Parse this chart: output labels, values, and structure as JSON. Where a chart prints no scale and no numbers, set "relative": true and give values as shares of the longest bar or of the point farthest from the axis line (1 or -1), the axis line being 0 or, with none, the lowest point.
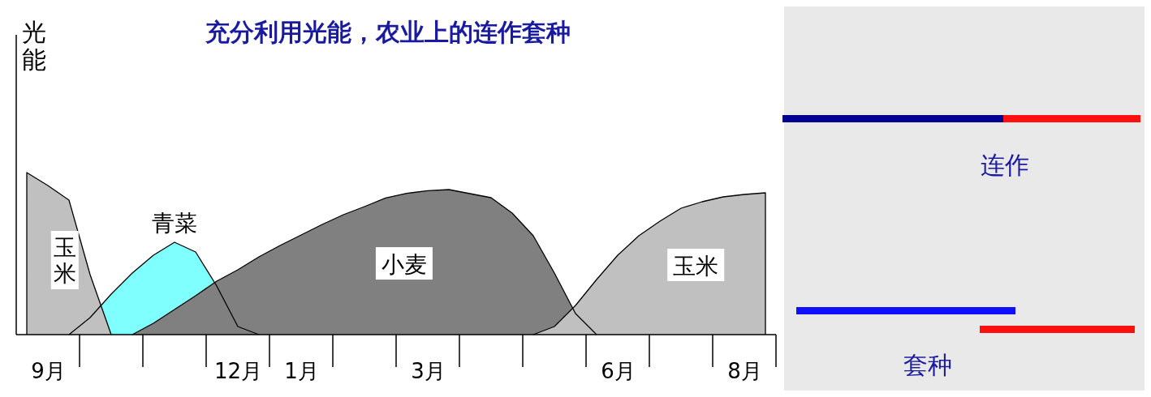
{
  "chart_data": [
    {
      "type": "area",
      "title": "充分利用光能，农业上的连作套种",
      "ylabel": "光能",
      "relative": true,
      "categories": [
        null,
        "9月",
        null,
        null,
        null,
        null,
        null,
        null,
        null,
        null,
        "12月",
        null,
        null,
        "1月",
        null,
        null,
        null,
        null,
        null,
        "3月",
        null,
        null,
        null,
        null,
        null,
        null,
        null,
        null,
        "6月",
        null,
        null,
        null,
        null,
        null,
        "8月",
        null
      ],
      "series": [
        {
          "name": "青菜",
          "color": "#80ffff",
          "values": [
            null,
            null,
            0,
            0.105,
            0.25,
            0.38,
            0.49,
            0.57,
            0.51,
            0.3,
            0.05,
            0,
            null,
            null,
            null,
            null,
            null,
            null,
            null,
            null,
            null,
            null,
            null,
            null,
            null,
            null,
            null,
            null,
            null,
            null,
            null,
            null,
            null,
            null,
            null,
            null
          ]
        },
        {
          "name": "小麦",
          "color": "#808080",
          "values": [
            null,
            null,
            null,
            null,
            null,
            0,
            0.07,
            0.155,
            0.24,
            0.33,
            0.4,
            0.48,
            0.55,
            0.615,
            0.68,
            0.74,
            0.79,
            0.843,
            0.872,
            0.888,
            0.895,
            0.87,
            0.845,
            0.75,
            0.61,
            0.38,
            0.13,
            0,
            null,
            null,
            null,
            null,
            null,
            null,
            null,
            null
          ]
        },
        {
          "name": "玉米",
          "color": "#c0c0c0",
          "values": [
            1,
            0.92,
            0.83,
            0.37,
            0,
            null,
            null,
            null,
            null,
            null,
            null,
            null,
            null,
            null,
            null,
            null,
            null,
            null,
            null,
            null,
            null,
            null,
            null,
            null,
            null,
            null,
            null,
            null,
            null,
            null,
            null,
            null,
            null,
            null,
            null,
            null
          ]
        },
        {
          "name": "玉米",
          "color": "#c0c0c0",
          "values": [
            null,
            null,
            null,
            null,
            null,
            null,
            null,
            null,
            null,
            null,
            null,
            null,
            null,
            null,
            null,
            null,
            null,
            null,
            null,
            null,
            null,
            null,
            null,
            null,
            0,
            0.05,
            0.18,
            0.34,
            0.49,
            0.61,
            0.7,
            0.78,
            0.82,
            0.85,
            0.865,
            0.875
          ]
        }
      ]
    },
    {
      "type": "other",
      "annotations": [
        "连作",
        "套种"
      ]
    }
  ]
}
